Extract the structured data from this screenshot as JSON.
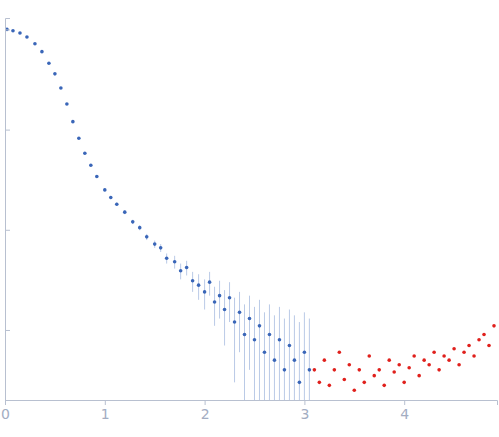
{
  "chart_data": {
    "type": "scatter",
    "log": "y",
    "tick_labels": "x",
    "grid": false,
    "xlim": [
      0,
      4.93
    ],
    "xticks": [
      0,
      1,
      2,
      3,
      4
    ],
    "ylim": [
      0.0002,
      1.3
    ],
    "yticks": [
      0.001,
      0.01,
      0.1,
      1
    ],
    "series": [
      {
        "color": "#3a66b8",
        "marker": "circle",
        "x": [
          0.02,
          0.08,
          0.15,
          0.22,
          0.3,
          0.37,
          0.44,
          0.5,
          0.56,
          0.62,
          0.68,
          0.74,
          0.8,
          0.86,
          0.92,
          1.0,
          1.06,
          1.12,
          1.2,
          1.28,
          1.35,
          1.42,
          1.5,
          1.56,
          1.62,
          1.7,
          1.76,
          1.82,
          1.88,
          1.94,
          2.0,
          2.05,
          2.1,
          2.15,
          2.2,
          2.25,
          2.3,
          2.35,
          2.4,
          2.45,
          2.5,
          2.55,
          2.6,
          2.65,
          2.7,
          2.75,
          2.8,
          2.85,
          2.9,
          2.95,
          3.0,
          3.05
        ],
        "values": [
          1.0,
          0.97,
          0.92,
          0.84,
          0.72,
          0.6,
          0.46,
          0.36,
          0.26,
          0.18,
          0.12,
          0.082,
          0.058,
          0.044,
          0.034,
          0.025,
          0.021,
          0.018,
          0.015,
          0.012,
          0.0105,
          0.0085,
          0.0072,
          0.0066,
          0.0052,
          0.0048,
          0.0039,
          0.0042,
          0.0031,
          0.0028,
          0.0024,
          0.003,
          0.0019,
          0.0022,
          0.0016,
          0.0021,
          0.0012,
          0.0015,
          0.0009,
          0.0013,
          0.0008,
          0.0011,
          0.0006,
          0.0009,
          0.0005,
          0.0008,
          0.0004,
          0.0007,
          0.0005,
          0.0003,
          0.0006,
          0.0004
        ],
        "errors": [
          0.02,
          0.02,
          0.02,
          0.02,
          0.015,
          0.012,
          0.01,
          0.008,
          0.006,
          0.004,
          0.003,
          0.002,
          0.0015,
          0.0012,
          0.001,
          0.0008,
          0.0008,
          0.0007,
          0.0007,
          0.0006,
          0.0006,
          0.0006,
          0.0006,
          0.0006,
          0.0006,
          0.0007,
          0.0007,
          0.0007,
          0.0007,
          0.0008,
          0.0008,
          0.0008,
          0.0008,
          0.0009,
          0.0009,
          0.0009,
          0.0009,
          0.0009,
          0.0009,
          0.0009,
          0.0009,
          0.0009,
          0.0009,
          0.0009,
          0.0009,
          0.0009,
          0.0009,
          0.0009,
          0.0009,
          0.0009,
          0.0009,
          0.0009
        ]
      },
      {
        "color": "#e0201c",
        "marker": "circle",
        "x": [
          3.1,
          3.15,
          3.2,
          3.25,
          3.3,
          3.35,
          3.4,
          3.45,
          3.5,
          3.55,
          3.6,
          3.65,
          3.7,
          3.75,
          3.8,
          3.85,
          3.9,
          3.95,
          4.0,
          4.05,
          4.1,
          4.15,
          4.2,
          4.25,
          4.3,
          4.35,
          4.4,
          4.45,
          4.5,
          4.55,
          4.6,
          4.65,
          4.7,
          4.75,
          4.8,
          4.85,
          4.9
        ],
        "values": [
          0.0004,
          0.0003,
          0.0005,
          0.00028,
          0.0004,
          0.0006,
          0.00032,
          0.00045,
          0.00025,
          0.0004,
          0.0003,
          0.00055,
          0.00035,
          0.0004,
          0.00028,
          0.0005,
          0.00038,
          0.00045,
          0.0003,
          0.00042,
          0.00055,
          0.00035,
          0.0005,
          0.00045,
          0.0006,
          0.0004,
          0.00055,
          0.0005,
          0.00065,
          0.00045,
          0.0006,
          0.0007,
          0.00055,
          0.0008,
          0.0009,
          0.0007,
          0.0011
        ]
      }
    ]
  }
}
